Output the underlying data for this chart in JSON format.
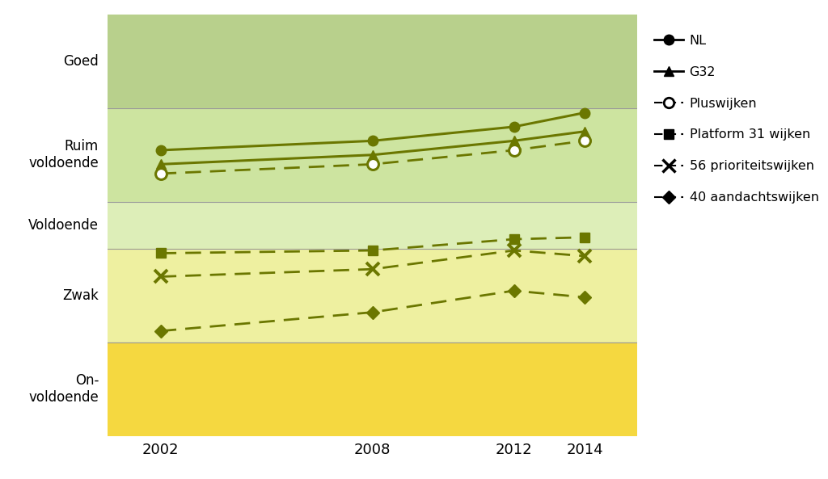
{
  "years": [
    2002,
    2008,
    2012,
    2014
  ],
  "series": {
    "NL": [
      6.55,
      6.65,
      6.8,
      6.95
    ],
    "G32": [
      6.4,
      6.5,
      6.65,
      6.75
    ],
    "Pluswijken": [
      6.3,
      6.4,
      6.55,
      6.65
    ],
    "Platform31wijken": [
      5.45,
      5.48,
      5.6,
      5.62
    ],
    "56prioriteitswijken": [
      5.2,
      5.28,
      5.48,
      5.42
    ],
    "40aandachtswijken": [
      4.62,
      4.82,
      5.05,
      4.98
    ]
  },
  "line_color": "#6b7700",
  "background_zones": [
    {
      "ymin": 7.0,
      "ymax": 8.0,
      "color": "#b8d08c"
    },
    {
      "ymin": 6.0,
      "ymax": 7.0,
      "color": "#cde4a0"
    },
    {
      "ymin": 5.5,
      "ymax": 6.0,
      "color": "#ddeeb8"
    },
    {
      "ymin": 4.5,
      "ymax": 5.5,
      "color": "#eef0a0"
    },
    {
      "ymin": 3.5,
      "ymax": 4.5,
      "color": "#f5d840"
    }
  ],
  "zone_boundaries": [
    4.5,
    5.5,
    6.0,
    7.0
  ],
  "ytick_positions": [
    7.5,
    6.5,
    5.75,
    5.0,
    4.0
  ],
  "ytick_texts": [
    "Goed",
    "Ruim\nvoldoende",
    "Voldoende",
    "Zwak",
    "On-\nvoldoende"
  ],
  "ylim": [
    3.5,
    8.0
  ],
  "xlim_left": 2000.5,
  "xlim_right": 2015.5
}
